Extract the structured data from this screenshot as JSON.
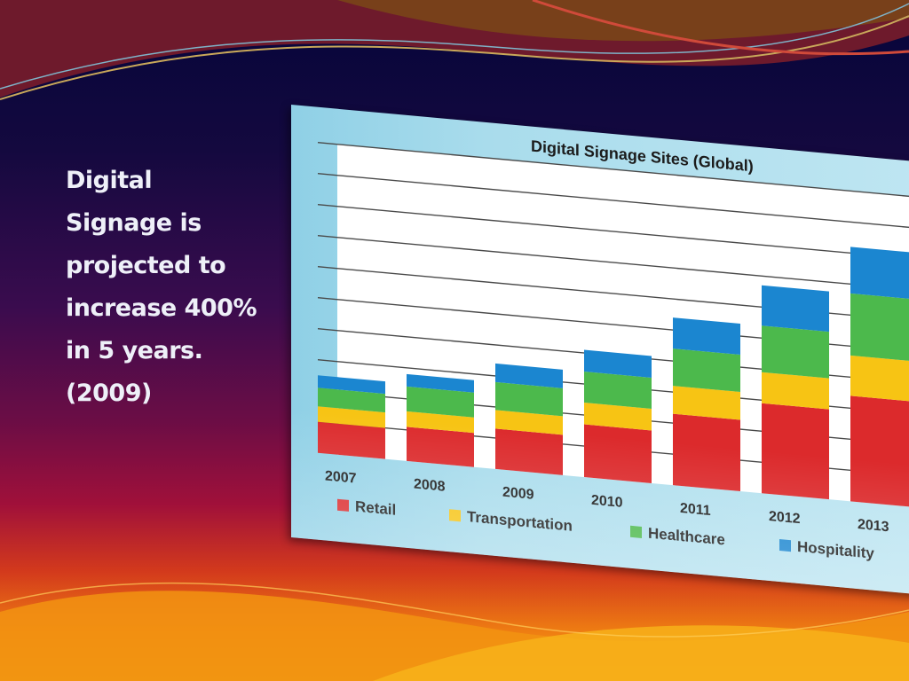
{
  "slide": {
    "body_text": "Digital\nSignage is\nprojected to\nincrease 400%\nin 5 years.\n(2009)"
  },
  "colors": {
    "retail": "#dc2a2c",
    "transportation": "#f7c414",
    "healthcare": "#4cb94c",
    "hospitality": "#1b86d0",
    "grid": "#4a4a4a"
  },
  "chart_data": {
    "type": "bar",
    "stacked": true,
    "title": "Digital Signage Sites (Global)",
    "xlabel": "",
    "ylabel": "",
    "grid": true,
    "legend_position": "bottom",
    "ylim": [
      0,
      10
    ],
    "categories": [
      "2007",
      "2008",
      "2009",
      "2010",
      "2011",
      "2012",
      "2013"
    ],
    "series": [
      {
        "name": "Retail",
        "color": "#dc2a2c",
        "values": [
          1.0,
          1.1,
          1.3,
          1.7,
          2.3,
          2.9,
          3.4
        ]
      },
      {
        "name": "Transportation",
        "color": "#f7c414",
        "values": [
          0.5,
          0.5,
          0.6,
          0.7,
          0.9,
          1.0,
          1.3
        ]
      },
      {
        "name": "Healthcare",
        "color": "#4cb94c",
        "values": [
          0.6,
          0.8,
          0.9,
          1.0,
          1.2,
          1.5,
          2.0
        ]
      },
      {
        "name": "Hospitality",
        "color": "#1b86d0",
        "values": [
          0.4,
          0.4,
          0.6,
          0.7,
          1.0,
          1.3,
          1.5
        ]
      }
    ]
  }
}
